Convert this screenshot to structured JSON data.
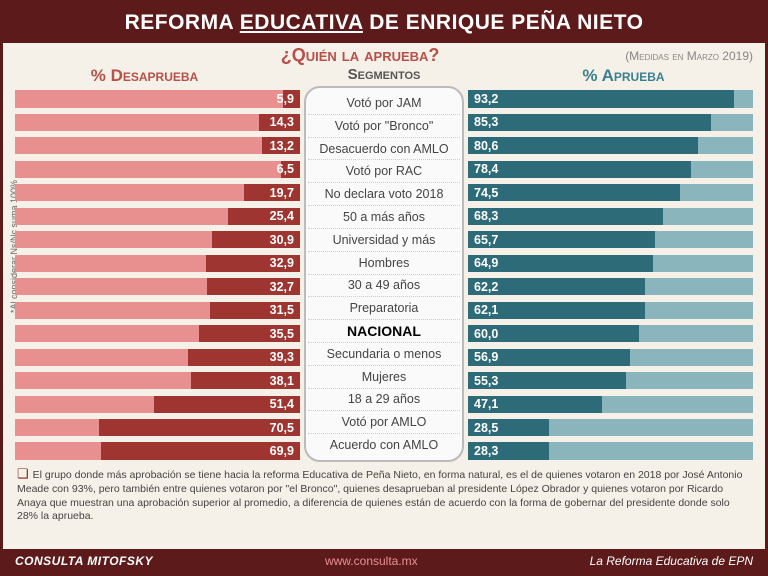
{
  "header": {
    "pre": "REFORMA ",
    "under": "EDUCATIVA",
    "post": " DE ENRIQUE PEÑA NIETO"
  },
  "sub": {
    "title": "¿Quién la aprueba?",
    "date": "(Medidas en Marzo 2019)"
  },
  "cols": {
    "left": "% Desaprueba",
    "mid": "Segmentos",
    "right": "% Aprueba"
  },
  "track_scale": 100,
  "colors": {
    "disap_track": "#e89090",
    "disap_fill": "#9e3530",
    "apr_track": "#8ab5bd",
    "apr_fill": "#2d6b78",
    "bg": "#f5f0e8",
    "frame": "#5d1a1a"
  },
  "rows": [
    {
      "seg": "Votó por JAM",
      "dis": 5.9,
      "apr": 93.2
    },
    {
      "seg": "Votó  por \"Bronco\"",
      "dis": 14.3,
      "apr": 85.3
    },
    {
      "seg": "Desacuerdo con AMLO",
      "dis": 13.2,
      "apr": 80.6
    },
    {
      "seg": "Votó por RAC",
      "dis": 6.5,
      "apr": 78.4
    },
    {
      "seg": "No declara voto 2018",
      "dis": 19.7,
      "apr": 74.5
    },
    {
      "seg": "50 a más años",
      "dis": 25.4,
      "apr": 68.3
    },
    {
      "seg": "Universidad y más",
      "dis": 30.9,
      "apr": 65.7
    },
    {
      "seg": "Hombres",
      "dis": 32.9,
      "apr": 64.9
    },
    {
      "seg": "30 a 49 años",
      "dis": 32.7,
      "apr": 62.2
    },
    {
      "seg": "Preparatoria",
      "dis": 31.5,
      "apr": 62.1
    },
    {
      "seg": "NACIONAL",
      "dis": 35.5,
      "apr": 60.0,
      "bold": true
    },
    {
      "seg": "Secundaria o menos",
      "dis": 39.3,
      "apr": 56.9
    },
    {
      "seg": "Mujeres",
      "dis": 38.1,
      "apr": 55.3
    },
    {
      "seg": "18 a 29 años",
      "dis": 51.4,
      "apr": 47.1
    },
    {
      "seg": "Votó por AMLO",
      "dis": 70.5,
      "apr": 28.5
    },
    {
      "seg": "Acuerdo con AMLO",
      "dis": 69.9,
      "apr": 28.3
    }
  ],
  "side_note": "*Al considerar Ns/Nc suma 100%",
  "footer": "El grupo donde más aprobación se tiene hacia la reforma Educativa de Peña Nieto, en forma natural, es el de quienes votaron en 2018 por José Antonio Meade con 93%, pero también entre quienes votaron por \"el Bronco\", quienes desaprueban al presidente López Obrador y quienes votaron por Ricardo Anaya que muestran una aprobación superior al promedio, a diferencia de quienes están de acuerdo con la forma de gobernar del presidente donde solo 28% la aprueba.",
  "bottom": {
    "brand": "CONSULTA MITOFSKY",
    "url": "www.consulta.mx",
    "tag": "La Reforma Educativa de EPN"
  }
}
